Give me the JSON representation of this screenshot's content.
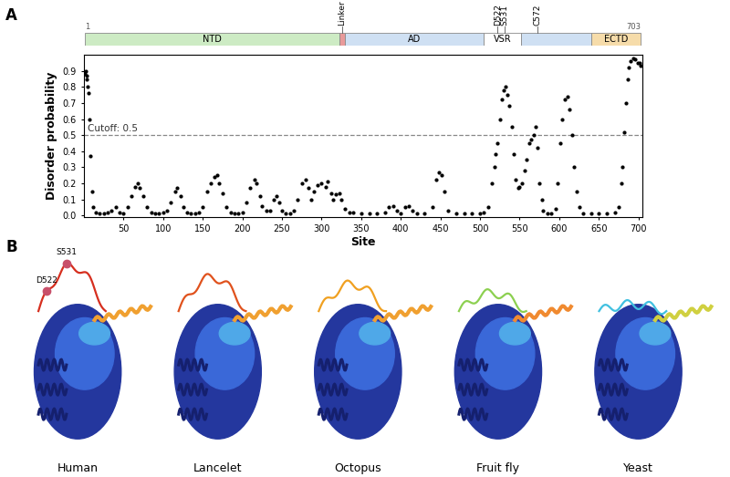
{
  "panel_labels": [
    "A",
    "B"
  ],
  "domain_map": {
    "start": 1,
    "end": 703,
    "domains": [
      {
        "name": "NTD",
        "start": 1,
        "end": 322,
        "color": "#cdebc4"
      },
      {
        "name": "Linker",
        "start": 322,
        "end": 330,
        "color": "#e89a9a"
      },
      {
        "name": "AD",
        "start": 330,
        "end": 505,
        "color": "#cfe0f3"
      },
      {
        "name": "VSR",
        "start": 505,
        "end": 552,
        "color": "#ffffff"
      },
      {
        "name": null,
        "start": 552,
        "end": 640,
        "color": "#cfe0f3"
      },
      {
        "name": "ECTD",
        "start": 640,
        "end": 703,
        "color": "#f6dcaa"
      }
    ],
    "sites": [
      {
        "name": "D522",
        "position": 522
      },
      {
        "name": "S531",
        "position": 531
      },
      {
        "name": "C572",
        "position": 572
      }
    ]
  },
  "chart_data": {
    "type": "scatter",
    "xlabel": "Site",
    "ylabel": "Disorder probability",
    "color": "#000000",
    "marker": "o",
    "cutoff": 0.5,
    "cutoff_label": "Cutoff: 0.5",
    "xlim": [
      0,
      705
    ],
    "ylim": [
      -0.01,
      1.0
    ],
    "xticks": [
      50,
      100,
      150,
      200,
      250,
      300,
      350,
      400,
      450,
      500,
      550,
      600,
      650,
      700
    ],
    "yticks": [
      {
        "value": 0,
        "label": "0.0"
      },
      0.1,
      0.2,
      0.3,
      0.4,
      0.5,
      0.6,
      0.7,
      0.8,
      0.9
    ],
    "x": [
      1,
      2,
      3,
      4,
      5,
      6,
      7,
      8,
      10,
      12,
      15,
      20,
      25,
      30,
      35,
      40,
      45,
      50,
      55,
      60,
      65,
      68,
      70,
      75,
      80,
      85,
      90,
      95,
      100,
      105,
      110,
      115,
      118,
      122,
      125,
      130,
      135,
      140,
      145,
      150,
      155,
      160,
      165,
      168,
      170,
      175,
      180,
      185,
      190,
      195,
      200,
      205,
      210,
      215,
      218,
      222,
      225,
      230,
      235,
      240,
      243,
      246,
      250,
      255,
      260,
      265,
      270,
      275,
      280,
      283,
      287,
      290,
      295,
      300,
      305,
      308,
      312,
      315,
      318,
      322,
      325,
      330,
      335,
      340,
      350,
      360,
      370,
      380,
      385,
      390,
      395,
      400,
      405,
      410,
      415,
      420,
      430,
      440,
      445,
      448,
      452,
      455,
      460,
      470,
      480,
      490,
      500,
      505,
      510,
      515,
      518,
      520,
      522,
      525,
      528,
      530,
      532,
      535,
      537,
      540,
      542,
      545,
      548,
      550,
      553,
      556,
      559,
      562,
      565,
      568,
      570,
      572,
      575,
      578,
      580,
      585,
      590,
      595,
      598,
      601,
      604,
      607,
      610,
      613,
      616,
      619,
      622,
      625,
      630,
      640,
      650,
      660,
      670,
      675,
      678,
      680,
      682,
      684,
      686,
      688,
      690,
      693,
      696,
      699,
      701,
      703
    ],
    "values": [
      0.88,
      0.9,
      0.87,
      0.85,
      0.8,
      0.76,
      0.6,
      0.37,
      0.15,
      0.05,
      0.02,
      0.01,
      0.01,
      0.02,
      0.03,
      0.05,
      0.02,
      0.01,
      0.05,
      0.12,
      0.18,
      0.2,
      0.17,
      0.12,
      0.05,
      0.02,
      0.01,
      0.01,
      0.02,
      0.03,
      0.08,
      0.15,
      0.17,
      0.12,
      0.05,
      0.02,
      0.01,
      0.01,
      0.02,
      0.05,
      0.15,
      0.2,
      0.24,
      0.25,
      0.2,
      0.14,
      0.05,
      0.02,
      0.01,
      0.01,
      0.02,
      0.08,
      0.17,
      0.22,
      0.2,
      0.12,
      0.06,
      0.03,
      0.03,
      0.1,
      0.12,
      0.08,
      0.03,
      0.01,
      0.01,
      0.03,
      0.1,
      0.2,
      0.22,
      0.17,
      0.1,
      0.15,
      0.19,
      0.2,
      0.18,
      0.21,
      0.14,
      0.1,
      0.13,
      0.14,
      0.1,
      0.04,
      0.02,
      0.02,
      0.01,
      0.01,
      0.01,
      0.02,
      0.05,
      0.06,
      0.03,
      0.01,
      0.05,
      0.06,
      0.03,
      0.01,
      0.01,
      0.05,
      0.22,
      0.27,
      0.25,
      0.15,
      0.03,
      0.01,
      0.01,
      0.01,
      0.01,
      0.02,
      0.05,
      0.2,
      0.3,
      0.38,
      0.45,
      0.6,
      0.72,
      0.78,
      0.8,
      0.75,
      0.68,
      0.55,
      0.38,
      0.22,
      0.17,
      0.18,
      0.2,
      0.28,
      0.35,
      0.45,
      0.47,
      0.5,
      0.55,
      0.42,
      0.2,
      0.1,
      0.03,
      0.01,
      0.01,
      0.04,
      0.2,
      0.45,
      0.6,
      0.72,
      0.74,
      0.66,
      0.5,
      0.3,
      0.15,
      0.05,
      0.01,
      0.01,
      0.01,
      0.01,
      0.02,
      0.05,
      0.2,
      0.3,
      0.52,
      0.7,
      0.85,
      0.92,
      0.96,
      0.98,
      0.97,
      0.95,
      0.95,
      0.93
    ]
  },
  "structures": [
    {
      "name": "Human",
      "sites": [
        "D522",
        "S531"
      ]
    },
    {
      "name": "Lancelet"
    },
    {
      "name": "Octopus"
    },
    {
      "name": "Fruit fly"
    },
    {
      "name": "Yeast"
    }
  ]
}
